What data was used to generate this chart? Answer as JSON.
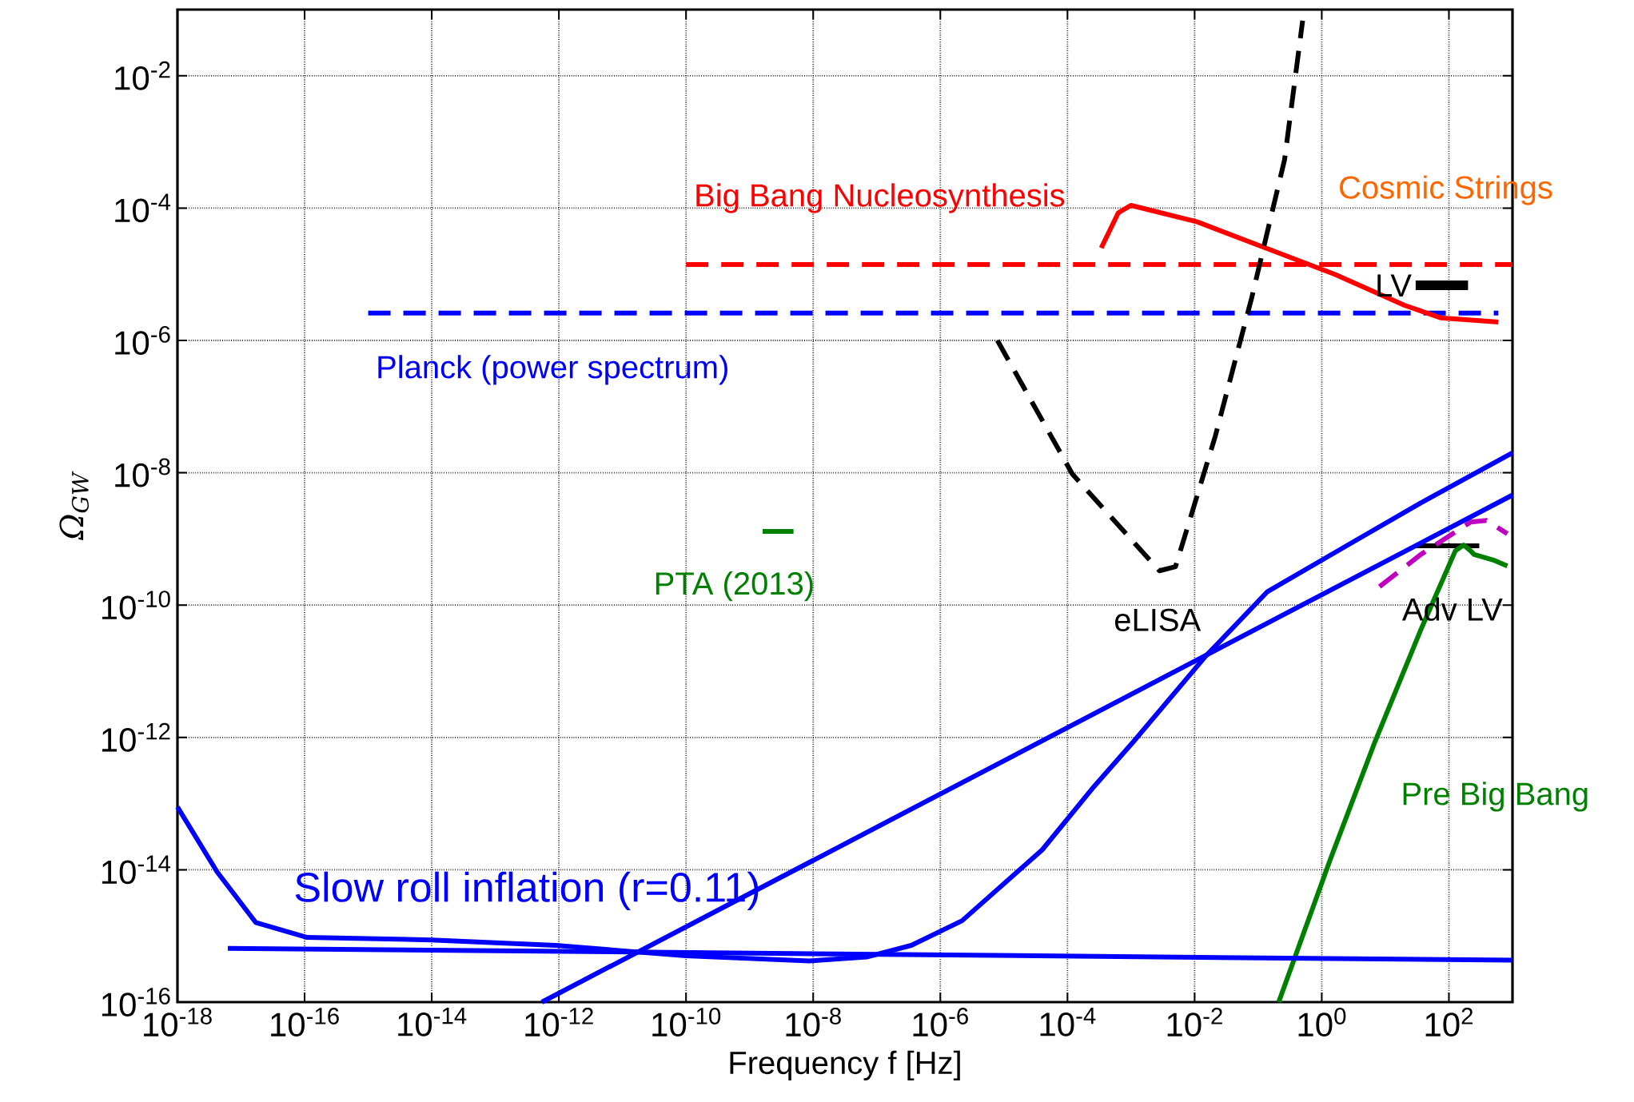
{
  "chart_data": {
    "type": "line",
    "xlabel": "Frequency f [Hz]",
    "ylabel": "Ω$_{GW}$",
    "log": "xy",
    "grid": true,
    "xlim": [
      1e-18,
      1000
    ],
    "ylim": [
      1e-16,
      0.1
    ],
    "xticks": [
      {
        "value": 1e-18,
        "label": "10$^{-18}$"
      },
      {
        "value": 1e-16,
        "label": "10$^{-16}$"
      },
      {
        "value": 1e-14,
        "label": "10$^{-14}$"
      },
      {
        "value": 1e-12,
        "label": "10$^{-12}$"
      },
      {
        "value": 1e-10,
        "label": "10$^{-10}$"
      },
      {
        "value": 1e-08,
        "label": "10$^{-8}$"
      },
      {
        "value": 1e-06,
        "label": "10$^{-6}$"
      },
      {
        "value": 0.0001,
        "label": "10$^{-4}$"
      },
      {
        "value": 0.01,
        "label": "10$^{-2}$"
      },
      {
        "value": 1,
        "label": "10$^{0}$"
      },
      {
        "value": 100,
        "label": "10$^{2}$"
      }
    ],
    "yticks": [
      {
        "value": 1e-16,
        "label": "10$^{-16}$"
      },
      {
        "value": 1e-14,
        "label": "10$^{-14}$"
      },
      {
        "value": 1e-12,
        "label": "10$^{-12}$"
      },
      {
        "value": 1e-10,
        "label": "10$^{-10}$"
      },
      {
        "value": 1e-08,
        "label": "10$^{-8}$"
      },
      {
        "value": 1e-06,
        "label": "10$^{-6}$"
      },
      {
        "value": 0.0001,
        "label": "10$^{-4}$"
      },
      {
        "value": 0.01,
        "label": "10$^{-2}$"
      }
    ],
    "series": [
      {
        "name": "Big Bang Nucleosynthesis",
        "color": "#ff0000",
        "line_style": "dashed",
        "x": [
          1e-10,
          1000
        ],
        "values": [
          1.4e-05,
          1.4e-05
        ]
      },
      {
        "name": "Planck (power spectrum)",
        "color": "#0000ff",
        "line_style": "dashed",
        "x": [
          1e-15,
          600
        ],
        "values": [
          2.6e-06,
          2.6e-06
        ]
      },
      {
        "name": "Cosmic Strings",
        "color": "#ff0000",
        "x": [
          0.00034,
          0.00063,
          0.001,
          0.011,
          0.13,
          1.6,
          20,
          74,
          600
        ],
        "values": [
          2.5e-05,
          8.5e-05,
          0.00011,
          6.2e-05,
          2.5e-05,
          1e-05,
          3.4e-06,
          2.2e-06,
          1.9e-06
        ]
      },
      {
        "name": "LV",
        "color": "#000000",
        "x": [
          30,
          200
        ],
        "values": [
          6.8e-06,
          6.8e-06
        ]
      },
      {
        "name": "eLISA",
        "color": "#000000",
        "line_style": "dashed",
        "x": [
          7.9e-06,
          0.00012,
          0.0028,
          0.005,
          0.021,
          0.079,
          0.26,
          0.5
        ],
        "values": [
          1e-06,
          9.5e-09,
          3.3e-10,
          3.8e-10,
          3.5e-08,
          4.4e-06,
          0.00054,
          0.068
        ]
      },
      {
        "name": "PTA (2013)",
        "color": "#008000",
        "x": [
          1.6e-09,
          4.9e-09
        ],
        "values": [
          1.3e-09,
          1.3e-09
        ]
      },
      {
        "name": "Adv LV",
        "color": "#000000",
        "x": [
          30,
          300
        ],
        "values": [
          7.9e-10,
          7.9e-10
        ]
      },
      {
        "color": "#bf00bf",
        "line_style": "dashed",
        "x": [
          8.1,
          36,
          220,
          390,
          830
        ],
        "values": [
          1.9e-10,
          5.8e-10,
          1.8e-09,
          1.9e-09,
          1.2e-09
        ]
      },
      {
        "name": "Pre Big Bang",
        "color": "#008000",
        "x": [
          0.21,
          1.35,
          6.9,
          36,
          126,
          170,
          220,
          250,
          500,
          830
        ],
        "values": [
          1e-16,
          1.4e-14,
          8.7e-13,
          4.2e-11,
          6.6e-10,
          8.1e-10,
          6.6e-10,
          5.8e-10,
          4.8e-10,
          3.9e-10
        ]
      },
      {
        "name": "Slow roll inflation (r=0.11)",
        "color": "#0000ff",
        "x": [
          6.2e-18,
          1000
        ],
        "values": [
          6.5e-16,
          4.3e-16
        ]
      },
      {
        "color": "#0000ff",
        "x": [
          5.4e-13,
          1000
        ],
        "values": [
          1e-16,
          4.6e-09
        ]
      },
      {
        "color": "#0000ff",
        "x": [
          1e-18,
          4.2e-18,
          1.7e-17,
          1.1e-16,
          9.8e-15,
          8.9e-13,
          1e-10,
          8.7e-09,
          6.9e-08,
          3.5e-07,
          2.2e-06,
          4e-05,
          0.00026,
          0.0011,
          0.015,
          0.14,
          2.3,
          36,
          1000
        ],
        "values": [
          8.9e-14,
          9.3e-15,
          1.6e-15,
          9.5e-16,
          8.7e-16,
          7.2e-16,
          5e-16,
          4.2e-16,
          4.8e-16,
          7.2e-16,
          1.7e-15,
          2e-14,
          1.8e-13,
          8.7e-13,
          1.7e-11,
          1.6e-10,
          7.6e-10,
          3.5e-09,
          2e-08
        ]
      }
    ]
  }
}
